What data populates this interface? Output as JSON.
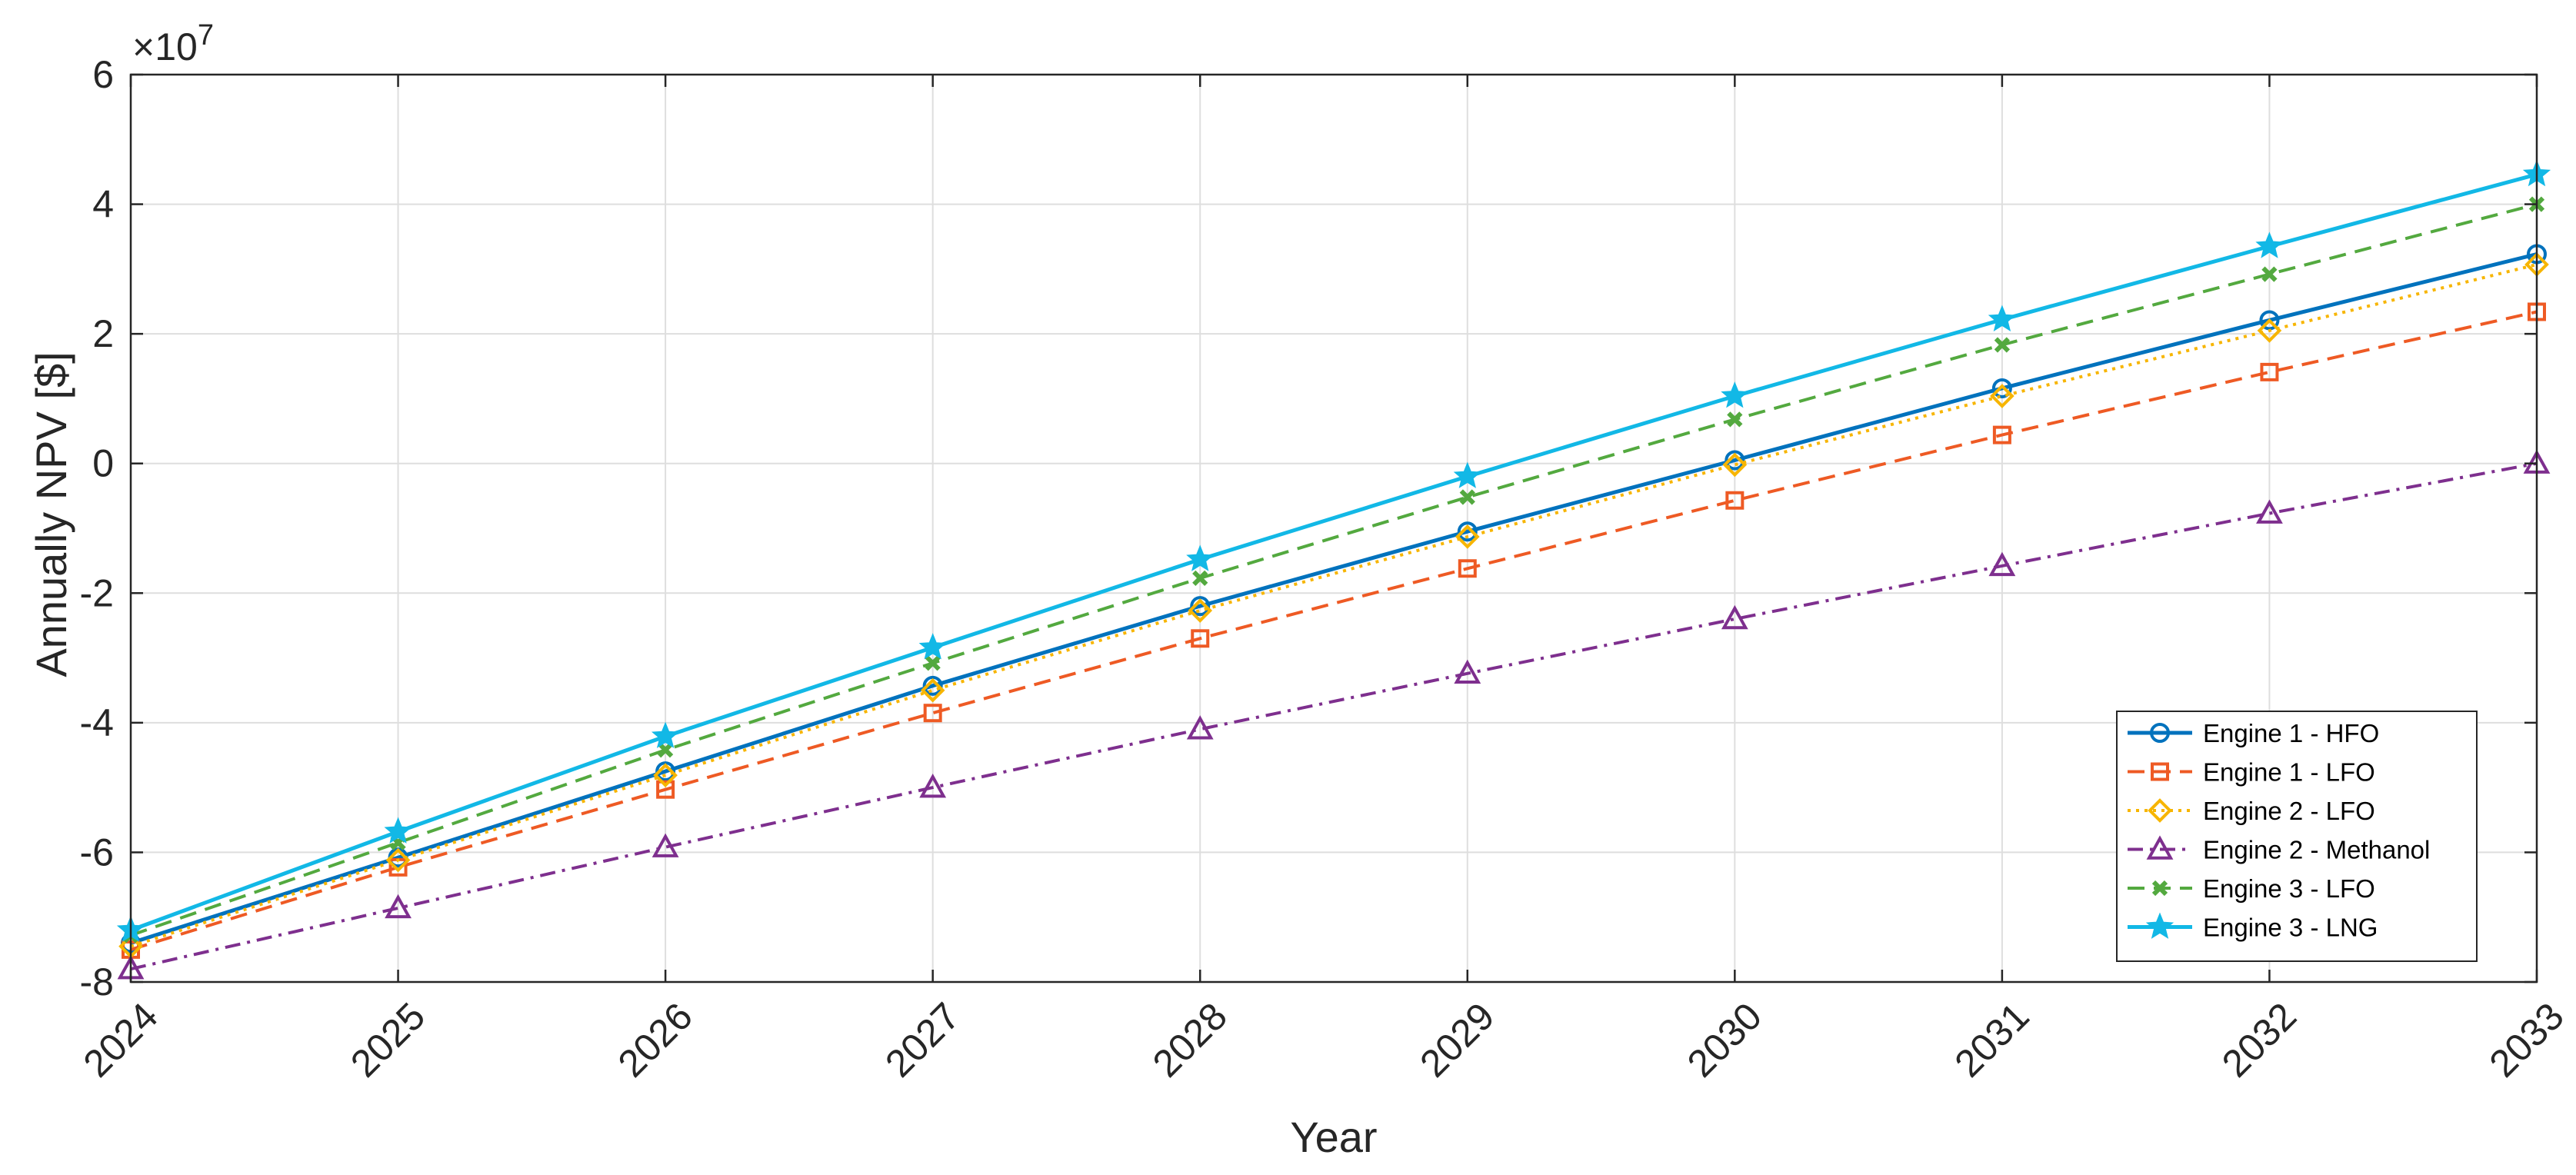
{
  "chart_data": {
    "type": "line",
    "x": [
      2024,
      2025,
      2026,
      2027,
      2028,
      2029,
      2030,
      2031,
      2032,
      2033
    ],
    "x_tick_labels": [
      "2024",
      "2025",
      "2026",
      "2027",
      "2028",
      "2029",
      "2030",
      "2031",
      "2032",
      "2033"
    ],
    "xlim": [
      2024,
      2033
    ],
    "ylim": [
      -80000000,
      60000000
    ],
    "y_ticks": [
      -80000000,
      -60000000,
      -40000000,
      -20000000,
      0,
      20000000,
      40000000,
      60000000
    ],
    "y_tick_labels": [
      "-8",
      "-6",
      "-4",
      "-2",
      "0",
      "2",
      "4",
      "6"
    ],
    "y_exponent_label": "×10",
    "y_exponent_power": "7",
    "xlabel": "Year",
    "ylabel": "Annually NPV [$]",
    "grid": true,
    "legend_position": "lower-right",
    "series": [
      {
        "name": "Engine 1 - HFO",
        "color": "#0072BD",
        "line_style": "solid",
        "marker": "circle",
        "values": [
          -74000000,
          -60800000,
          -47500000,
          -34300000,
          -22000000,
          -10500000,
          500000,
          11600000,
          22100000,
          32300000
        ]
      },
      {
        "name": "Engine 1 - LFO",
        "color": "#EE5A24",
        "line_style": "dashed",
        "marker": "square",
        "values": [
          -75000000,
          -62300000,
          -50300000,
          -38500000,
          -27000000,
          -16200000,
          -5700000,
          4400000,
          14100000,
          23400000
        ]
      },
      {
        "name": "Engine 2 - LFO",
        "color": "#F7B500",
        "line_style": "dotted",
        "marker": "diamond",
        "values": [
          -74500000,
          -61200000,
          -48100000,
          -35000000,
          -22700000,
          -11300000,
          -200000,
          10400000,
          20500000,
          30700000
        ]
      },
      {
        "name": "Engine 2 - Methanol",
        "color": "#7E2F8E",
        "line_style": "dashdot",
        "marker": "triangle",
        "values": [
          -78000000,
          -68600000,
          -59200000,
          -50000000,
          -41000000,
          -32400000,
          -24000000,
          -15800000,
          -7700000,
          0
        ]
      },
      {
        "name": "Engine 3 - LFO",
        "color": "#53A93F",
        "line_style": "dashed",
        "marker": "x",
        "values": [
          -72800000,
          -58500000,
          -44200000,
          -30800000,
          -17700000,
          -5200000,
          6800000,
          18300000,
          29200000,
          40000000
        ]
      },
      {
        "name": "Engine 3 - LNG",
        "color": "#12B8E6",
        "line_style": "solid",
        "marker": "pentagram",
        "values": [
          -72000000,
          -56800000,
          -42100000,
          -28400000,
          -14800000,
          -2000000,
          10400000,
          22200000,
          33500000,
          44600000
        ]
      }
    ]
  }
}
